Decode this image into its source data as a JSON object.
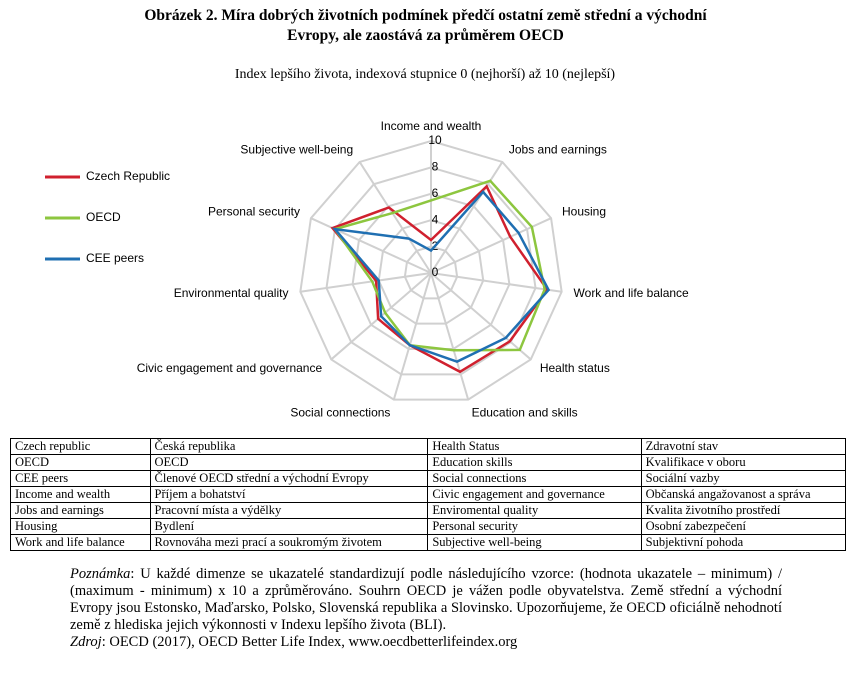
{
  "header": {
    "title_line1": "Obrázek 2. Míra dobrých životních podmínek předčí ostatní země střední a východní",
    "title_line2": "Evropy, ale zaostává za průměrem OECD"
  },
  "chart_data": {
    "type": "radar",
    "subtitle": "Index lepšího života, indexová stupnice 0 (nejhorší) až 10 (nejlepší)",
    "categories": [
      "Income and wealth",
      "Jobs and earnings",
      "Housing",
      "Work and life balance",
      "Health status",
      "Education and skills",
      "Social connections",
      "Civic engagement and governance",
      "Environmental quality",
      "Personal security",
      "Subjective well-being"
    ],
    "series": [
      {
        "name": "Czech Republic",
        "color": "#d0202e",
        "values": [
          2.5,
          7.8,
          6.6,
          8.9,
          7.9,
          7.8,
          5.7,
          5.3,
          4.2,
          8.2,
          5.9
        ]
      },
      {
        "name": "OECD",
        "color": "#8dc63f",
        "values": [
          5.5,
          8.3,
          8.4,
          8.7,
          8.9,
          6.1,
          5.7,
          4.6,
          4.5,
          8.0,
          5.4
        ]
      },
      {
        "name": "CEE peers",
        "color": "#1f6fb2",
        "values": [
          1.7,
          7.3,
          7.3,
          9.0,
          7.5,
          7.0,
          5.7,
          5.0,
          4.0,
          8.0,
          3.1
        ]
      }
    ],
    "rlim": [
      0,
      10
    ],
    "rticks": [
      0,
      2,
      4,
      6,
      8,
      10
    ],
    "grid": true,
    "legend": "left"
  },
  "table": {
    "rows": [
      [
        "Czech republic",
        "Česká republika",
        "Health Status",
        "Zdravotní stav"
      ],
      [
        "OECD",
        "OECD",
        "Education skills",
        "Kvalifikace v oboru"
      ],
      [
        "CEE peers",
        "Členové OECD střední a východní Evropy",
        "Social connections",
        "Sociální vazby"
      ],
      [
        "Income and wealth",
        "Příjem a bohatství",
        "Civic engagement and governance",
        "Občanská angažovanost a správa"
      ],
      [
        "Jobs and earnings",
        "Pracovní místa a výdělky",
        "Enviromental quality",
        "Kvalita životního prostředí"
      ],
      [
        "Housing",
        "Bydlení",
        "Personal security",
        "Osobní zabezpečení"
      ],
      [
        "Work and life balance",
        "Rovnováha mezi prací a soukromým životem",
        "Subjective well-being",
        "Subjektivní pohoda"
      ]
    ]
  },
  "note": {
    "label": "Poznámka",
    "text": ": U každé dimenze se ukazatelé standardizují podle následujícího vzorce: (hodnota ukazatele – minimum) / (maximum - minimum) x 10 a zprůměrováno. Souhrn OECD je vážen podle obyvatelstva. Země střední a východní Evropy jsou Estonsko, Maďarsko, Polsko, Slovenská republika a Slovinsko. Upozorňujeme, že OECD oficiálně nehodnotí země z hlediska jejich výkonnosti v Indexu lepšího života (BLI)."
  },
  "source": {
    "label": "Zdroj",
    "text": ": OECD (2017), OECD Better Life Index, www.oecdbetterlifeindex.org"
  }
}
